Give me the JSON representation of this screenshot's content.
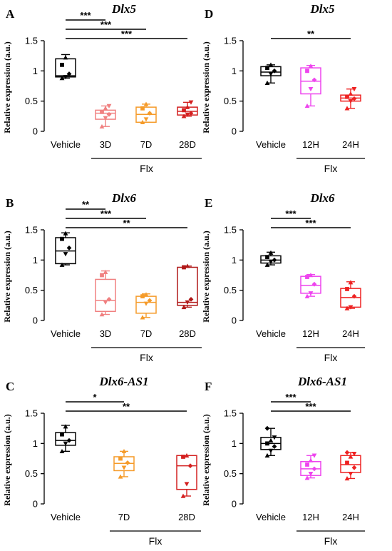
{
  "chart_data": [
    {
      "panel": "A",
      "title": "Dlx5",
      "type": "box",
      "ylabel": "Relative expression (a.u.)",
      "ylim": [
        0,
        1.5
      ],
      "yticks": [
        "0",
        "0.5",
        "1",
        "1.5"
      ],
      "categories": [
        "Vehicle",
        "3D",
        "7D",
        "28D"
      ],
      "group_label": "Flx",
      "group_span": [
        1,
        3
      ],
      "colors": [
        "#000000",
        "#f08080",
        "#f59b2a",
        "#d42020"
      ],
      "boxes": [
        {
          "min": 0.88,
          "q1": 0.9,
          "median": 0.92,
          "q3": 1.2,
          "max": 1.27,
          "points": [
            0.88,
            0.9,
            0.95,
            1.1,
            1.22
          ]
        },
        {
          "min": 0.08,
          "q1": 0.2,
          "median": 0.3,
          "q3": 0.35,
          "max": 0.42,
          "points": [
            0.08,
            0.22,
            0.28,
            0.32,
            0.38,
            0.42
          ]
        },
        {
          "min": 0.15,
          "q1": 0.15,
          "median": 0.28,
          "q3": 0.4,
          "max": 0.45,
          "points": [
            0.15,
            0.2,
            0.3,
            0.38,
            0.45
          ]
        },
        {
          "min": 0.25,
          "q1": 0.27,
          "median": 0.33,
          "q3": 0.4,
          "max": 0.48,
          "points": [
            0.25,
            0.28,
            0.3,
            0.35,
            0.4,
            0.48
          ]
        }
      ],
      "sig": [
        {
          "to": 1,
          "label": "***"
        },
        {
          "to": 2,
          "label": "***"
        },
        {
          "to": 3,
          "label": "***"
        }
      ]
    },
    {
      "panel": "B",
      "title": "Dlx6",
      "type": "box",
      "ylabel": "Relative expression (a.u.)",
      "ylim": [
        0,
        1.5
      ],
      "yticks": [
        "0",
        "0.5",
        "1",
        "1.5"
      ],
      "categories": [
        "Vehicle",
        "3D",
        "7D",
        "28D"
      ],
      "group_label": "Flx",
      "group_span": [
        1,
        3
      ],
      "colors": [
        "#000000",
        "#f08080",
        "#f59b2a",
        "#b01818"
      ],
      "boxes": [
        {
          "min": 0.92,
          "q1": 0.94,
          "median": 1.15,
          "q3": 1.37,
          "max": 1.45,
          "points": [
            0.92,
            1.1,
            1.2,
            1.35,
            1.44
          ]
        },
        {
          "min": 0.1,
          "q1": 0.15,
          "median": 0.33,
          "q3": 0.68,
          "max": 0.82,
          "points": [
            0.1,
            0.3,
            0.35,
            0.75,
            0.8
          ]
        },
        {
          "min": 0.05,
          "q1": 0.12,
          "median": 0.3,
          "q3": 0.4,
          "max": 0.44,
          "points": [
            0.05,
            0.28,
            0.33,
            0.4,
            0.43
          ]
        },
        {
          "min": 0.22,
          "q1": 0.25,
          "median": 0.3,
          "q3": 0.88,
          "max": 0.9,
          "points": [
            0.22,
            0.3,
            0.35,
            0.88,
            0.9
          ]
        }
      ],
      "sig": [
        {
          "to": 1,
          "label": "**"
        },
        {
          "to": 2,
          "label": "***"
        },
        {
          "to": 3,
          "label": "**"
        }
      ]
    },
    {
      "panel": "C",
      "title": "Dlx6-AS1",
      "type": "box",
      "ylabel": "Relative expression (a.u.)",
      "ylim": [
        0,
        1.5
      ],
      "yticks": [
        "0",
        "0.5",
        "1",
        "1.5"
      ],
      "categories": [
        "Vehicle",
        "7D",
        "28D"
      ],
      "group_label": "Flx",
      "group_span": [
        1,
        2
      ],
      "colors": [
        "#000000",
        "#f59b2a",
        "#d42020"
      ],
      "boxes": [
        {
          "min": 0.87,
          "q1": 0.97,
          "median": 1.05,
          "q3": 1.18,
          "max": 1.3,
          "points": [
            0.87,
            1.0,
            1.05,
            1.15,
            1.28
          ]
        },
        {
          "min": 0.45,
          "q1": 0.55,
          "median": 0.67,
          "q3": 0.78,
          "max": 0.87,
          "points": [
            0.45,
            0.6,
            0.68,
            0.75,
            0.87
          ]
        },
        {
          "min": 0.13,
          "q1": 0.24,
          "median": 0.63,
          "q3": 0.8,
          "max": 0.8,
          "points": [
            0.13,
            0.33,
            0.63,
            0.78,
            0.8
          ]
        }
      ],
      "sig": [
        {
          "to": 1,
          "label": "*"
        },
        {
          "to": 2,
          "label": "**"
        }
      ]
    },
    {
      "panel": "D",
      "title": "Dlx5",
      "type": "box",
      "ylabel": "Relative expression (a.u.)",
      "ylim": [
        0,
        1.5
      ],
      "yticks": [
        "0",
        "0.5",
        "1",
        "1.5"
      ],
      "categories": [
        "Vehicle",
        "12H",
        "24H"
      ],
      "group_label": "Flx",
      "group_span": [
        1,
        2
      ],
      "colors": [
        "#000000",
        "#ee44ee",
        "#ee2222"
      ],
      "boxes": [
        {
          "min": 0.8,
          "q1": 0.92,
          "median": 0.98,
          "q3": 1.07,
          "max": 1.1,
          "points": [
            0.8,
            0.95,
            1.0,
            1.05,
            1.1
          ]
        },
        {
          "min": 0.42,
          "q1": 0.62,
          "median": 0.83,
          "q3": 1.05,
          "max": 1.09,
          "points": [
            0.42,
            0.7,
            0.85,
            1.0,
            1.08
          ]
        },
        {
          "min": 0.38,
          "q1": 0.5,
          "median": 0.55,
          "q3": 0.6,
          "max": 0.7,
          "points": [
            0.38,
            0.5,
            0.54,
            0.57,
            0.62,
            0.7
          ]
        }
      ],
      "sig": [
        {
          "to": 2,
          "label": "**"
        }
      ]
    },
    {
      "panel": "E",
      "title": "Dlx6",
      "type": "box",
      "ylabel": "Relative expression (a.u.)",
      "ylim": [
        0,
        1.5
      ],
      "yticks": [
        "0",
        "0.5",
        "1",
        "1.5"
      ],
      "categories": [
        "Vehicle",
        "12H",
        "24H"
      ],
      "group_label": "Flx",
      "group_span": [
        1,
        2
      ],
      "colors": [
        "#000000",
        "#ee44ee",
        "#ee2222"
      ],
      "boxes": [
        {
          "min": 0.92,
          "q1": 0.95,
          "median": 1.0,
          "q3": 1.07,
          "max": 1.13,
          "points": [
            0.92,
            0.97,
            1.0,
            1.05,
            1.12
          ]
        },
        {
          "min": 0.4,
          "q1": 0.45,
          "median": 0.58,
          "q3": 0.73,
          "max": 0.76,
          "points": [
            0.4,
            0.45,
            0.6,
            0.72,
            0.75
          ]
        },
        {
          "min": 0.2,
          "q1": 0.22,
          "median": 0.38,
          "q3": 0.53,
          "max": 0.64,
          "points": [
            0.2,
            0.22,
            0.4,
            0.52,
            0.63
          ]
        }
      ],
      "sig": [
        {
          "to": 1,
          "label": "***"
        },
        {
          "to": 2,
          "label": "***"
        }
      ]
    },
    {
      "panel": "F",
      "title": "Dlx6-AS1",
      "type": "box",
      "ylabel": "Relative expression (a.u.)",
      "ylim": [
        0,
        1.5
      ],
      "yticks": [
        "0",
        "0.5",
        "1",
        "1.5"
      ],
      "categories": [
        "Vehicle",
        "12H",
        "24H"
      ],
      "group_label": "Flx",
      "group_span": [
        1,
        2
      ],
      "colors": [
        "#000000",
        "#ee44ee",
        "#ee2222"
      ],
      "boxes": [
        {
          "min": 0.8,
          "q1": 0.9,
          "median": 1.0,
          "q3": 1.1,
          "max": 1.25,
          "points": [
            0.8,
            0.88,
            0.95,
            1.0,
            1.05,
            1.1,
            1.25
          ]
        },
        {
          "min": 0.43,
          "q1": 0.47,
          "median": 0.58,
          "q3": 0.7,
          "max": 0.8,
          "points": [
            0.43,
            0.5,
            0.58,
            0.65,
            0.72,
            0.8
          ]
        },
        {
          "min": 0.42,
          "q1": 0.52,
          "median": 0.65,
          "q3": 0.8,
          "max": 0.85,
          "points": [
            0.42,
            0.5,
            0.6,
            0.68,
            0.78,
            0.83,
            0.85
          ]
        }
      ],
      "sig": [
        {
          "to": 1,
          "label": "***"
        },
        {
          "to": 2,
          "label": "***"
        }
      ]
    }
  ]
}
